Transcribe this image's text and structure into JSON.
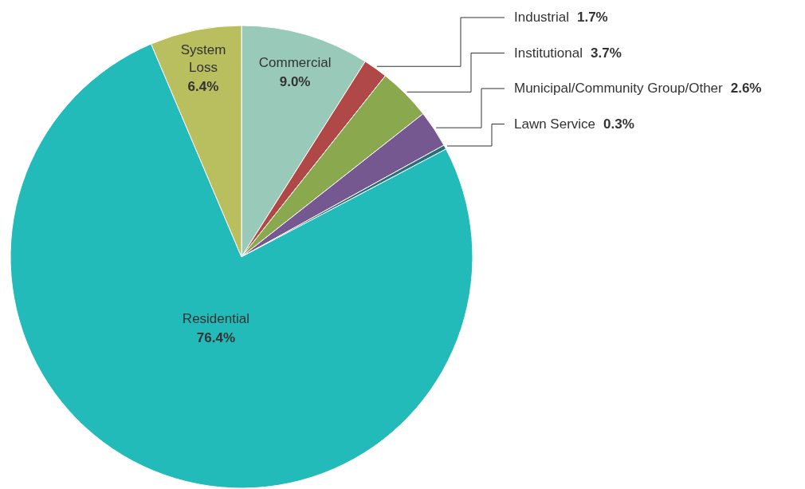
{
  "chart_data": {
    "type": "pie",
    "categories": [
      "Commercial",
      "Industrial",
      "Institutional",
      "Municipal/Community Group/Other",
      "Lawn Service",
      "Residential",
      "System Loss"
    ],
    "values": [
      9.0,
      1.7,
      3.7,
      2.6,
      0.3,
      76.4,
      6.4
    ],
    "colors": [
      "#98c9b9",
      "#b04848",
      "#8aa84e",
      "#765890",
      "#2a6e7c",
      "#22bbb9",
      "#b9be5e"
    ],
    "value_labels": [
      "9.0%",
      "1.7%",
      "3.7%",
      "2.6%",
      "0.3%",
      "76.4%",
      "6.4%"
    ]
  }
}
